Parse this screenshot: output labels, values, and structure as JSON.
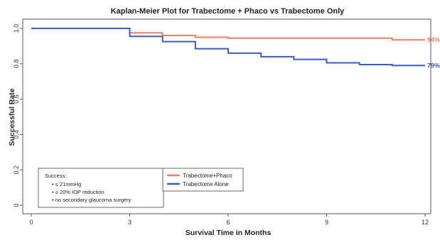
{
  "chart_data": {
    "type": "line",
    "title": "Kaplan-Meier Plot for Trabectome + Phaco vs Trabectome Only",
    "xlabel": "Survival Time in Months",
    "ylabel": "Successful Rate",
    "xlim": [
      0,
      12
    ],
    "ylim": [
      0,
      1.0
    ],
    "xticks": [
      "0",
      "3",
      "6",
      "9",
      "12"
    ],
    "yticks": [
      "0",
      "0.2",
      "0.4",
      "0.6",
      "0.8",
      "1.0"
    ],
    "grid": false,
    "legend_position": "bottom-center",
    "series": [
      {
        "name": "Trabectome+Phaco",
        "color": "#f07f60",
        "step": true,
        "x": [
          0,
          3,
          4,
          5,
          6,
          11,
          12
        ],
        "y": [
          1.0,
          0.975,
          0.96,
          0.95,
          0.945,
          0.935,
          0.935
        ],
        "end_label": "94%"
      },
      {
        "name": "Trabectome Alone",
        "color": "#3b5bc7",
        "step": true,
        "x": [
          0,
          3,
          4,
          5,
          6,
          7,
          8,
          9,
          10,
          11,
          12
        ],
        "y": [
          1.0,
          0.955,
          0.925,
          0.885,
          0.86,
          0.84,
          0.825,
          0.805,
          0.795,
          0.79,
          0.79
        ],
        "end_label": "79%"
      }
    ],
    "annotation": {
      "heading": "Success:",
      "items": [
        "• ≤ 21mmHg",
        "• ≥ 20% IOP reduction",
        "• no secondary glaucoma surgery"
      ]
    }
  }
}
